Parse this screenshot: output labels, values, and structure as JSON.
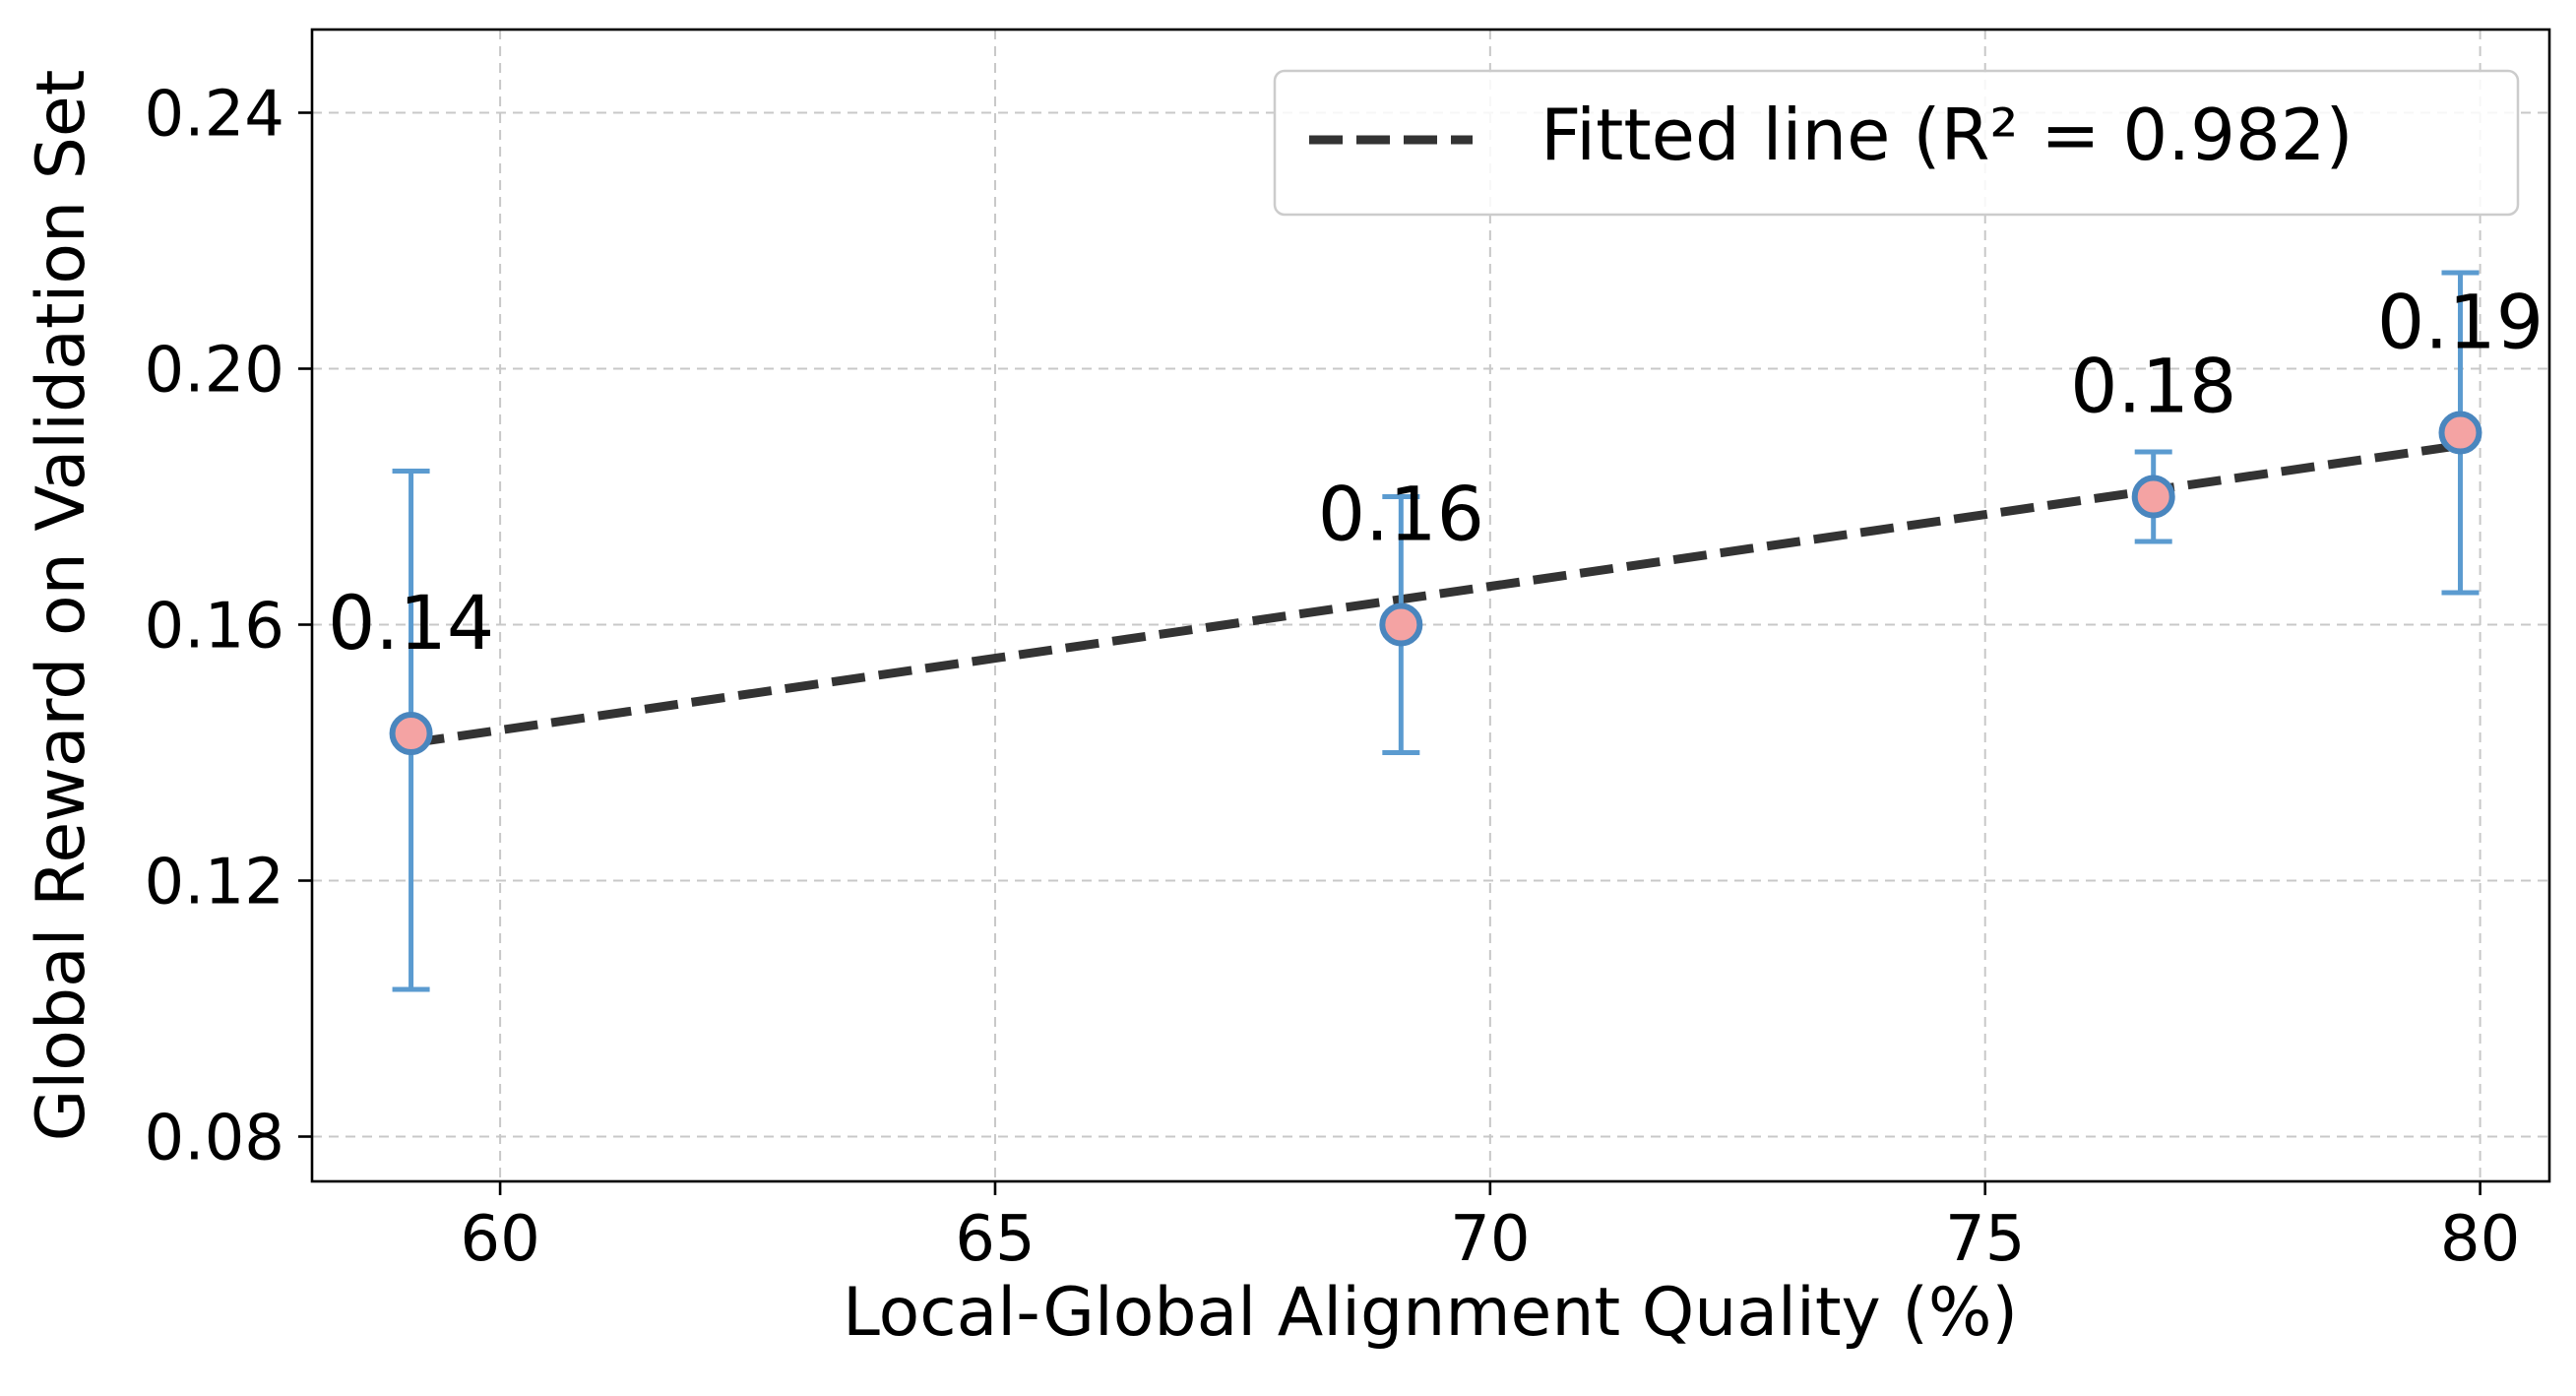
{
  "chart_data": {
    "type": "scatter",
    "title": "",
    "xlabel": "Local-Global Alignment Quality (%)",
    "ylabel": "Global Reward on Validation Set",
    "xlim": [
      58.1,
      80.7
    ],
    "ylim": [
      0.073,
      0.253
    ],
    "xticks": [
      60,
      65,
      70,
      75,
      80
    ],
    "xtick_labels": [
      "60",
      "65",
      "70",
      "75",
      "80"
    ],
    "yticks": [
      0.08,
      0.12,
      0.16,
      0.2,
      0.24
    ],
    "ytick_labels": [
      "0.08",
      "0.12",
      "0.16",
      "0.20",
      "0.24"
    ],
    "grid": true,
    "points": [
      {
        "x": 59.1,
        "y": 0.143,
        "err_low": 0.103,
        "err_high": 0.184,
        "label": "0.14"
      },
      {
        "x": 69.1,
        "y": 0.16,
        "err_low": 0.14,
        "err_high": 0.18,
        "label": "0.16"
      },
      {
        "x": 76.7,
        "y": 0.18,
        "err_low": 0.173,
        "err_high": 0.187,
        "label": "0.18"
      },
      {
        "x": 79.8,
        "y": 0.19,
        "err_low": 0.165,
        "err_high": 0.215,
        "label": "0.19"
      }
    ],
    "fit_line": {
      "x": [
        59.1,
        79.8
      ],
      "y": [
        0.1415,
        0.188
      ]
    },
    "legend": {
      "position": "top-right",
      "entries": [
        "Fitted line (R² = 0.982)"
      ]
    },
    "colors": {
      "marker_fill": "#f4a3a3",
      "marker_edge": "#4a86be",
      "errorbar": "#5b9bd0",
      "fit_line": "#333333",
      "grid": "#c8c8c8"
    }
  }
}
